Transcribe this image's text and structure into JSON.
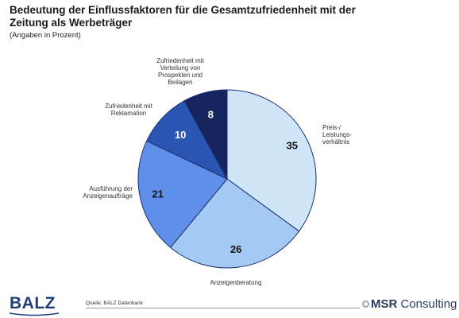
{
  "header": {
    "title": "Bedeutung der Einflussfaktoren für die Gesamtzufriedenheit mit der Zeitung als Werbeträger",
    "subtitle": "(Angaben in Prozent)"
  },
  "chart_data": {
    "type": "pie",
    "title": "Bedeutung der Einflussfaktoren für die Gesamtzufriedenheit mit der Zeitung als Werbeträger",
    "subtitle": "(Angaben in Prozent)",
    "unit": "Prozent",
    "start": "12 o'clock, clockwise",
    "slices": [
      {
        "label": [
          "Preis-/",
          "Leistungs-",
          "verhältnis"
        ],
        "value": 35,
        "color": "#cfe6f8",
        "value_color": "#111111"
      },
      {
        "label": [
          "Anzeigenberatung"
        ],
        "value": 26,
        "color": "#a4c9f3",
        "value_color": "#111111"
      },
      {
        "label": [
          "Ausführung der",
          "Anzeigenaufträge"
        ],
        "value": 21,
        "color": "#5f8fe8",
        "value_color": "#111111"
      },
      {
        "label": [
          "Zufriedenheit mit",
          "Reklamation"
        ],
        "value": 10,
        "color": "#2a55b3",
        "value_color": "#ffffff"
      },
      {
        "label": [
          "Zufriedenheit mit",
          "Verteilung von",
          "Prospekten und",
          "Beilagen"
        ],
        "value": 8,
        "color": "#15245c",
        "value_color": "#ffffff"
      }
    ]
  },
  "footer": {
    "logo": "BALZ",
    "source": "Quelle: BALZ Datenbank",
    "brand_mark": "MSR",
    "brand_rest": " Consulting"
  }
}
